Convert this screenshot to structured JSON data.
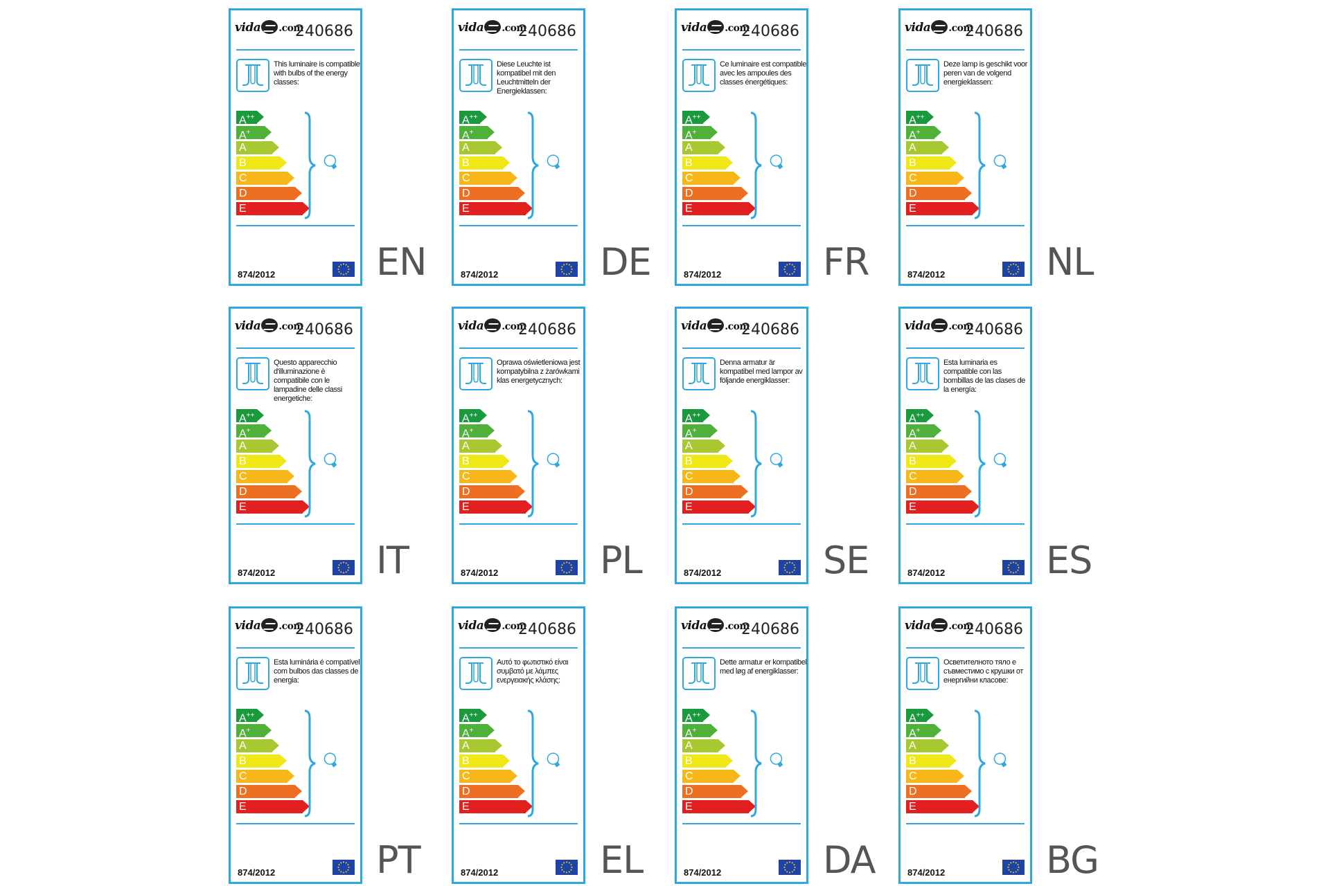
{
  "brand": {
    "logo_prefix": "vida",
    "logo_suffix": ".com",
    "logo_mark": "xl-mark"
  },
  "product_number": "240686",
  "regulation": "874/2012",
  "energy_classes": [
    {
      "label": "A",
      "sup": "++",
      "color": "#1a9a3d"
    },
    {
      "label": "A",
      "sup": "+",
      "color": "#4fb03a"
    },
    {
      "label": "A",
      "sup": "",
      "color": "#a7c830"
    },
    {
      "label": "B",
      "sup": "",
      "color": "#f0e716"
    },
    {
      "label": "C",
      "sup": "",
      "color": "#f7b719"
    },
    {
      "label": "D",
      "sup": "",
      "color": "#ec6f22"
    },
    {
      "label": "E",
      "sup": "",
      "color": "#e2201f"
    }
  ],
  "icons": {
    "luminaire": "luminaire-icon",
    "bracket": "bracket-icon",
    "bulb": "light-bulb-icon",
    "flag": "eu-flag-icon"
  },
  "colors": {
    "border": "#2ea8e0",
    "flag_blue": "#1f43a4",
    "flag_stars": "#f5d217",
    "code_text": "#555555"
  },
  "labels": [
    {
      "code": "EN",
      "text": "This luminaire is compatible with bulbs of the energy classes:"
    },
    {
      "code": "DE",
      "text": "Diese Leuchte ist kompatibel mit den Leuchtmitteln der Energieklassen:"
    },
    {
      "code": "FR",
      "text": "Ce luminaire est compatible avec les ampoules des classes énergétiques:"
    },
    {
      "code": "NL",
      "text": "Deze lamp is geschikt voor peren van de volgend energieklassen:"
    },
    {
      "code": "IT",
      "text": "Questo apparecchio d'illuminazione è compatibile con le lampadine delle classi energetiche:"
    },
    {
      "code": "PL",
      "text": "Oprawa oświetleniowa jest kompatybilna z żarówkami klas energetycznych:"
    },
    {
      "code": "SE",
      "text": "Denna armatur är kompatibel med lampor av följande energiklasser:"
    },
    {
      "code": "ES",
      "text": "Esta luminaria es compatible con las bombillas de las clases de la energía:"
    },
    {
      "code": "PT",
      "text": "Esta luminária é compatível com bulbos das classes de energia:"
    },
    {
      "code": "EL",
      "text": "Αυτό το φωτιστικό είναι συμβατό με λάμπες ενεργειακής κλάσης:"
    },
    {
      "code": "DA",
      "text": "Dette armatur er kompatibel med løg af energiklasser:"
    },
    {
      "code": "BG",
      "text": "Осветителното тяло е съвместимо с крушки от енергийни класове:"
    }
  ]
}
